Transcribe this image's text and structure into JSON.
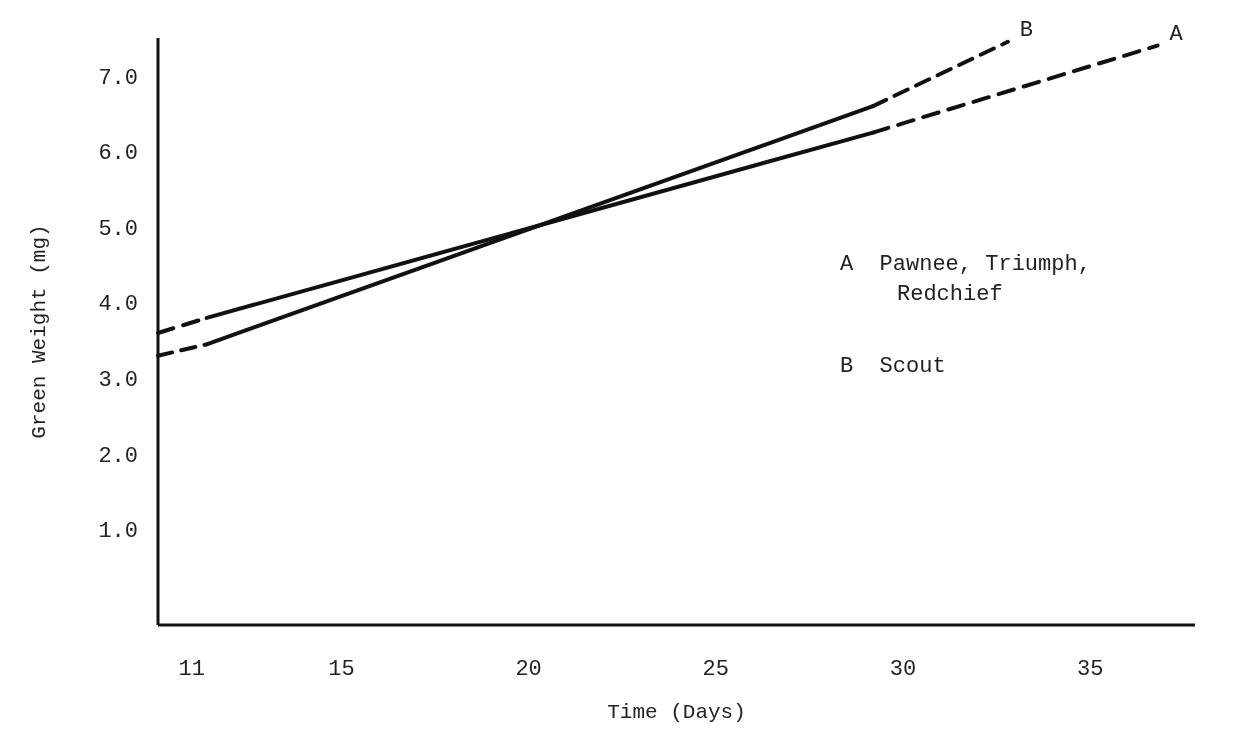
{
  "chart_data": {
    "type": "line",
    "xlabel": "Time (Days)",
    "ylabel": "Green Weight (mg)",
    "xlim": [
      10.1,
      37.8
    ],
    "xticks": [
      11,
      15,
      20,
      25,
      30,
      35
    ],
    "ylim": [
      -0.26,
      7.5
    ],
    "yticks": [
      {
        "value": 1,
        "label": "1.0"
      },
      {
        "value": 2,
        "label": "2.0"
      },
      {
        "value": 3,
        "label": "3.0"
      },
      {
        "value": 4,
        "label": "4.0"
      },
      {
        "value": 5,
        "label": "5.0"
      },
      {
        "value": 6,
        "label": "6.0"
      },
      {
        "value": 7,
        "label": "7.0"
      }
    ],
    "grid": false,
    "marker": "none",
    "series": [
      {
        "color": "#111111",
        "line_style": "solid",
        "x": [
          11.4,
          29.2
        ],
        "values": [
          3.8,
          6.25
        ]
      },
      {
        "color": "#111111",
        "line_style": "dashed",
        "x": [
          10.1,
          11.4,
          20,
          29.2,
          36.8
        ],
        "values": [
          3.6,
          3.8,
          null,
          6.25,
          7.4
        ]
      },
      {
        "color": "#111111",
        "line_style": "solid",
        "x": [
          11.4,
          29.2
        ],
        "values": [
          3.45,
          6.6
        ]
      },
      {
        "color": "#111111",
        "line_style": "dashed",
        "x": [
          10.1,
          11.4,
          20,
          29.2,
          32.8
        ],
        "values": [
          3.3,
          3.45,
          null,
          6.6,
          7.45
        ]
      }
    ],
    "annotations": [
      {
        "text": "A",
        "x": 36.8,
        "y": 7.4
      },
      {
        "text": "B",
        "x": 32.8,
        "y": 7.45
      },
      "A  Pawnee, Triumph, Redchief",
      "B  Scout"
    ]
  }
}
